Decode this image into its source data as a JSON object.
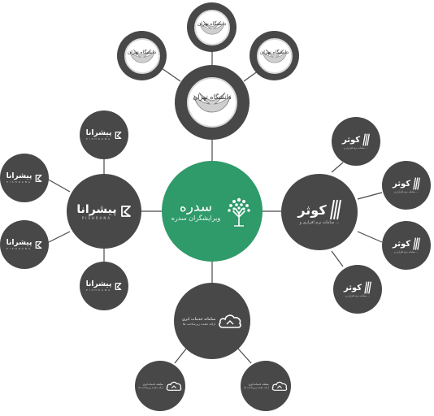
{
  "hub": {
    "name": "سدره",
    "subtitle": "ویرایشگران سدره"
  },
  "university": {
    "text": "دانشگاه تهران"
  },
  "pishrana": {
    "name": "پیشرانا",
    "subtitle": "PISHRANA"
  },
  "kowsar": {
    "name": "کوثر",
    "subtitle": "سامانه نرم افزاری و ..."
  },
  "cloud": {
    "line1": "سامانه خدمات ابری",
    "line2": "ارائه دهنده زیرساخت ها"
  },
  "colors": {
    "hub": "#2f9a6a",
    "node": "#484848",
    "line": "#4a4a4a"
  }
}
